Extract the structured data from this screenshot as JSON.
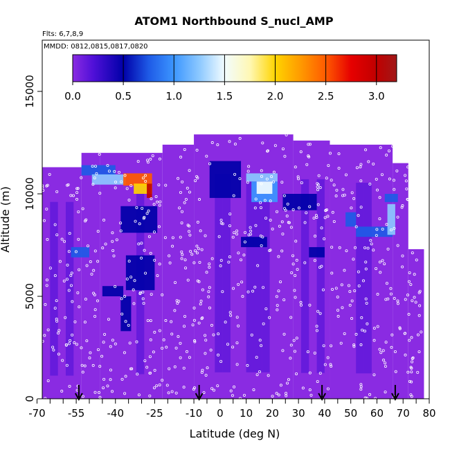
{
  "chart_data": {
    "type": "heatmap",
    "title": "ATOM1 Northbound S_nucl_AMP",
    "subtitle_flights": "Flts: 6,7,8,9",
    "subtitle_dates": "MMDD: 0812,0815,0817,0820",
    "xlabel": "Latitude (deg N)",
    "ylabel": "Altitude (m)",
    "xlim": [
      -68,
      80
    ],
    "ylim": [
      0,
      17500
    ],
    "x_ticks": [
      {
        "v": -70,
        "label": "-70"
      },
      {
        "v": -55,
        "label": "-55"
      },
      {
        "v": -40,
        "label": "-40"
      },
      {
        "v": -25,
        "label": "-25"
      },
      {
        "v": -10,
        "label": "-10"
      },
      {
        "v": 0,
        "label": "0"
      },
      {
        "v": 10,
        "label": "10"
      },
      {
        "v": 20,
        "label": "20"
      },
      {
        "v": 30,
        "label": "30"
      },
      {
        "v": 40,
        "label": "40"
      },
      {
        "v": 50,
        "label": "50"
      },
      {
        "v": 60,
        "label": "60"
      },
      {
        "v": 70,
        "label": "70"
      },
      {
        "v": 80,
        "label": "80"
      }
    ],
    "y_ticks": [
      {
        "v": 0,
        "label": "0"
      },
      {
        "v": 5000,
        "label": "5000"
      },
      {
        "v": 10000,
        "label": "10000"
      },
      {
        "v": 15000,
        "label": "15000"
      }
    ],
    "colorbar": {
      "range": [
        0,
        3.2
      ],
      "ticks": [
        {
          "v": 0.0,
          "label": "0.0"
        },
        {
          "v": 0.5,
          "label": "0.5"
        },
        {
          "v": 1.0,
          "label": "1.0"
        },
        {
          "v": 1.5,
          "label": "1.5"
        },
        {
          "v": 2.0,
          "label": "2.0"
        },
        {
          "v": 2.5,
          "label": "2.5"
        },
        {
          "v": 3.0,
          "label": "3.0"
        }
      ],
      "stops": [
        {
          "v": 0.0,
          "color": "#8a2be2"
        },
        {
          "v": 0.2,
          "color": "#5010d8"
        },
        {
          "v": 0.5,
          "color": "#0000a8"
        },
        {
          "v": 0.75,
          "color": "#1e5ae6"
        },
        {
          "v": 1.0,
          "color": "#3c96ff"
        },
        {
          "v": 1.25,
          "color": "#8cc8ff"
        },
        {
          "v": 1.5,
          "color": "#f2fcff"
        },
        {
          "v": 1.75,
          "color": "#fff8b4"
        },
        {
          "v": 2.0,
          "color": "#ffd400"
        },
        {
          "v": 2.25,
          "color": "#ff9a00"
        },
        {
          "v": 2.5,
          "color": "#ff5a00"
        },
        {
          "v": 2.75,
          "color": "#e60000"
        },
        {
          "v": 3.0,
          "color": "#c00000"
        },
        {
          "v": 3.2,
          "color": "#a01818"
        }
      ]
    },
    "coverage": [
      {
        "lat0": -68,
        "lat1": -53,
        "top": 11300
      },
      {
        "lat0": -53,
        "lat1": -46,
        "top": 12000
      },
      {
        "lat0": -46,
        "lat1": -22,
        "top": 12000
      },
      {
        "lat0": -22,
        "lat1": -10,
        "top": 12400
      },
      {
        "lat0": -10,
        "lat1": 28,
        "top": 12900
      },
      {
        "lat0": 28,
        "lat1": 42,
        "top": 12600
      },
      {
        "lat0": 42,
        "lat1": 66,
        "top": 12400
      },
      {
        "lat0": 66,
        "lat1": 72,
        "top": 11500
      },
      {
        "lat0": 72,
        "lat1": 78,
        "top": 7300
      }
    ],
    "features": [
      {
        "lat0": -53,
        "lat1": -40,
        "alt0": 10900,
        "alt1": 11400,
        "value": 0.6
      },
      {
        "lat0": -49,
        "lat1": -36,
        "alt0": 10450,
        "alt1": 10950,
        "value": 1.1
      },
      {
        "lat0": -37,
        "lat1": -26,
        "alt0": 10400,
        "alt1": 11000,
        "value": 2.5
      },
      {
        "lat0": -33,
        "lat1": -26,
        "alt0": 10000,
        "alt1": 10500,
        "value": 1.8
      },
      {
        "lat0": -28,
        "lat1": -26,
        "alt0": 9800,
        "alt1": 10500,
        "value": 3.0
      },
      {
        "lat0": -38,
        "lat1": -24,
        "alt0": 8100,
        "alt1": 9400,
        "value": 0.5
      },
      {
        "lat0": -57,
        "lat1": -50,
        "alt0": 6900,
        "alt1": 7400,
        "value": 0.6
      },
      {
        "lat0": -36,
        "lat1": -25,
        "alt0": 5300,
        "alt1": 7000,
        "value": 0.4
      },
      {
        "lat0": -45,
        "lat1": -37,
        "alt0": 5000,
        "alt1": 5500,
        "value": 0.3
      },
      {
        "lat0": -38,
        "lat1": -34,
        "alt0": 3300,
        "alt1": 5000,
        "value": 0.3
      },
      {
        "lat0": -4,
        "lat1": 8,
        "alt0": 9800,
        "alt1": 11600,
        "value": 0.5
      },
      {
        "lat0": 10,
        "lat1": 22,
        "alt0": 10600,
        "alt1": 11000,
        "value": 1.1
      },
      {
        "lat0": 12,
        "lat1": 22,
        "alt0": 9600,
        "alt1": 10600,
        "value": 1.0
      },
      {
        "lat0": 14,
        "lat1": 20,
        "alt0": 10000,
        "alt1": 10600,
        "value": 1.3
      },
      {
        "lat0": 24,
        "lat1": 37,
        "alt0": 9200,
        "alt1": 10000,
        "value": 0.5
      },
      {
        "lat0": 8,
        "lat1": 18,
        "alt0": 7400,
        "alt1": 7900,
        "value": 0.5
      },
      {
        "lat0": 34,
        "lat1": 40,
        "alt0": 6900,
        "alt1": 7400,
        "value": 0.5
      },
      {
        "lat0": 48,
        "lat1": 52,
        "alt0": 8400,
        "alt1": 9100,
        "value": 0.6
      },
      {
        "lat0": 52,
        "lat1": 66,
        "alt0": 7900,
        "alt1": 8400,
        "value": 0.6
      },
      {
        "lat0": 64,
        "lat1": 67,
        "alt0": 8000,
        "alt1": 9500,
        "value": 1.1
      },
      {
        "lat0": 63,
        "lat1": 68,
        "alt0": 9600,
        "alt1": 10000,
        "value": 0.6
      }
    ],
    "flight_markers_lat": [
      -54,
      -8,
      39,
      67
    ],
    "samples_per_column": 5
  }
}
